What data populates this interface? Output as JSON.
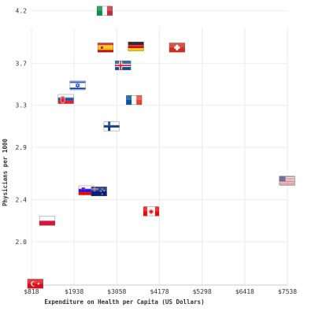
{
  "chart_data": {
    "type": "scatter",
    "title": "",
    "xlabel": "Expenditure on Health per Capita (US Dollars)",
    "ylabel": "Physicians per 1000",
    "xlim": [
      818,
      7538
    ],
    "ylim": [
      1.6,
      4.3
    ],
    "x_ticks": [
      818,
      1938,
      3058,
      4178,
      5298,
      6418,
      7538
    ],
    "x_tick_labels": [
      "$818",
      "$1938",
      "$3058",
      "$4178",
      "$5298",
      "$6418",
      "$7538"
    ],
    "y_ticks": [
      2.0,
      2.4,
      2.9,
      3.3,
      3.7,
      4.2
    ],
    "y_tick_labels": [
      "2.0",
      "2.4",
      "2.9",
      "3.3",
      "3.7",
      "4.2"
    ],
    "grid": true,
    "points": [
      {
        "flag": "italy",
        "x": 2740,
        "y": 4.2
      },
      {
        "flag": "spain",
        "x": 2760,
        "y": 3.85
      },
      {
        "flag": "germany",
        "x": 3560,
        "y": 3.86
      },
      {
        "flag": "switzerland",
        "x": 4640,
        "y": 3.85
      },
      {
        "flag": "iceland",
        "x": 3220,
        "y": 3.68
      },
      {
        "flag": "israel",
        "x": 2030,
        "y": 3.49
      },
      {
        "flag": "slovakia",
        "x": 1720,
        "y": 3.36
      },
      {
        "flag": "france",
        "x": 3510,
        "y": 3.35
      },
      {
        "flag": "finland",
        "x": 2920,
        "y": 3.1
      },
      {
        "flag": "united-states",
        "x": 7530,
        "y": 2.58
      },
      {
        "flag": "slovenia",
        "x": 2260,
        "y": 2.49
      },
      {
        "flag": "new-zealand",
        "x": 2590,
        "y": 2.48
      },
      {
        "flag": "canada",
        "x": 3960,
        "y": 2.29
      },
      {
        "flag": "poland",
        "x": 1230,
        "y": 2.2
      },
      {
        "flag": "turkey",
        "x": 918,
        "y": 1.6
      }
    ]
  }
}
